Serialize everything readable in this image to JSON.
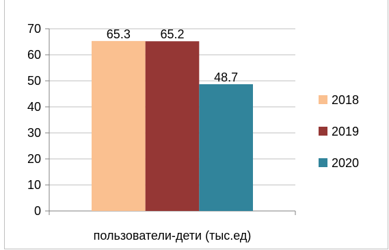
{
  "chart_data": {
    "type": "bar",
    "categories": [
      "пользователи-дети (тыс.ед)"
    ],
    "series": [
      {
        "name": "2018",
        "values": [
          65.3
        ],
        "color": "#FAC090"
      },
      {
        "name": "2019",
        "values": [
          65.2
        ],
        "color": "#953735"
      },
      {
        "name": "2020",
        "values": [
          48.7
        ],
        "color": "#31849B"
      }
    ],
    "data_labels": [
      "65.3",
      "65.2",
      "48.7"
    ],
    "y_ticks": [
      "0",
      "10",
      "20",
      "30",
      "40",
      "50",
      "60",
      "70"
    ],
    "ylim": [
      0,
      70
    ],
    "grid": true,
    "legend_position": "right",
    "title": "",
    "xlabel": "",
    "ylabel": ""
  }
}
